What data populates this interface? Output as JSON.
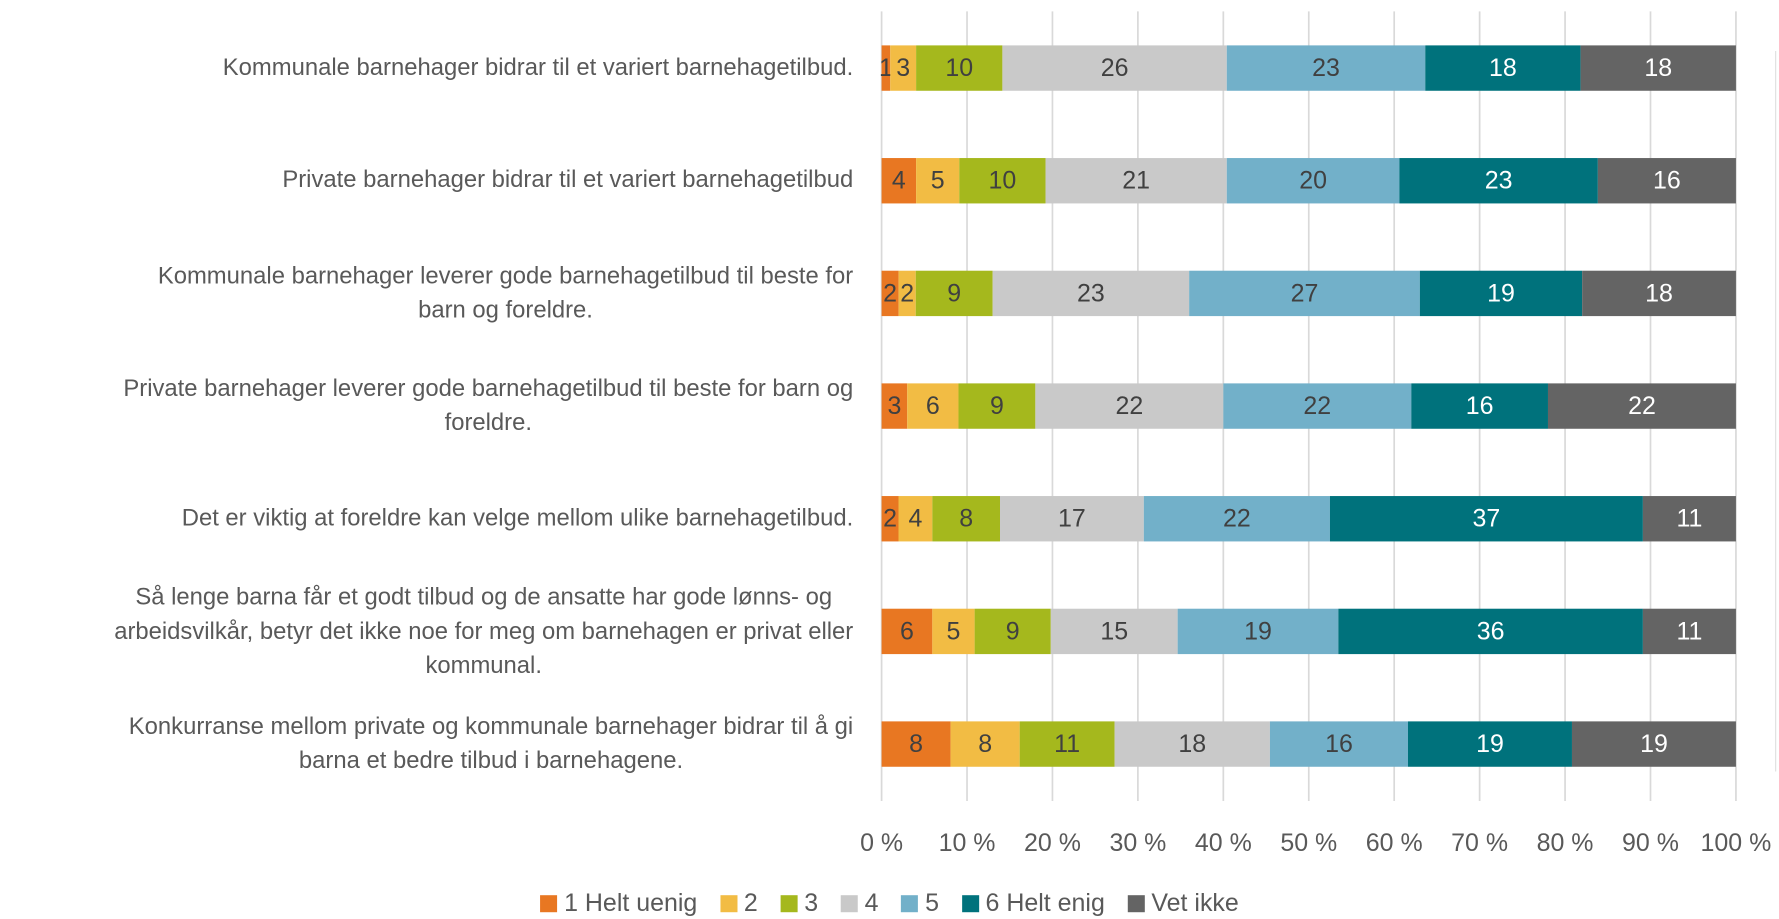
{
  "chart_data": {
    "type": "stacked_bar_percent",
    "categories": [
      "Kommunale barnehager bidrar til et variert barnehagetilbud.",
      "Private barnehager bidrar til et variert barnehagetilbud",
      "Kommunale barnehager leverer gode barnehagetilbud til beste for\nbarn og foreldre.",
      "Private barnehager leverer gode barnehagetilbud til beste for barn og\nforeldre.",
      "Det er viktig at foreldre kan velge mellom ulike barnehagetilbud.",
      "Så lenge barna får et godt tilbud og de ansatte har gode lønns- og\narbeidsvilkår, betyr det ikke noe for meg om barnehagen er privat eller\nkommunal.",
      "Konkurranse mellom private og kommunale barnehager bidrar til å gi\nbarna et bedre tilbud i barnehagene."
    ],
    "series": [
      {
        "name": "1 Helt uenig",
        "color": "#e87722",
        "values": [
          1,
          4,
          2,
          3,
          2,
          6,
          8
        ]
      },
      {
        "name": "2",
        "color": "#f2bc44",
        "values": [
          3,
          5,
          2,
          6,
          4,
          5,
          8
        ]
      },
      {
        "name": "3",
        "color": "#a5b81d",
        "values": [
          10,
          10,
          9,
          9,
          8,
          9,
          11
        ]
      },
      {
        "name": "4",
        "color": "#c9c9c9",
        "values": [
          26,
          21,
          23,
          22,
          17,
          15,
          18
        ]
      },
      {
        "name": "5",
        "color": "#72b0c9",
        "values": [
          23,
          20,
          27,
          22,
          22,
          19,
          16
        ]
      },
      {
        "name": "6 Helt enig",
        "color": "#00727c",
        "values": [
          18,
          23,
          19,
          16,
          37,
          36,
          19
        ]
      },
      {
        "name": "Vet ikke",
        "color": "#646464",
        "values": [
          18,
          16,
          18,
          22,
          11,
          11,
          19
        ]
      }
    ],
    "xlim": [
      0,
      100
    ],
    "xticks": [
      {
        "value": 0,
        "label": "0 %"
      },
      {
        "value": 10,
        "label": "10 %"
      },
      {
        "value": 20,
        "label": "20 %"
      },
      {
        "value": 30,
        "label": "30 %"
      },
      {
        "value": 40,
        "label": "40 %"
      },
      {
        "value": 50,
        "label": "50 %"
      },
      {
        "value": 60,
        "label": "60 %"
      },
      {
        "value": 70,
        "label": "70 %"
      },
      {
        "value": 80,
        "label": "80 %"
      },
      {
        "value": 90,
        "label": "90 %"
      },
      {
        "value": 100,
        "label": "100 %"
      }
    ],
    "grid": true,
    "legend": "bottom"
  }
}
